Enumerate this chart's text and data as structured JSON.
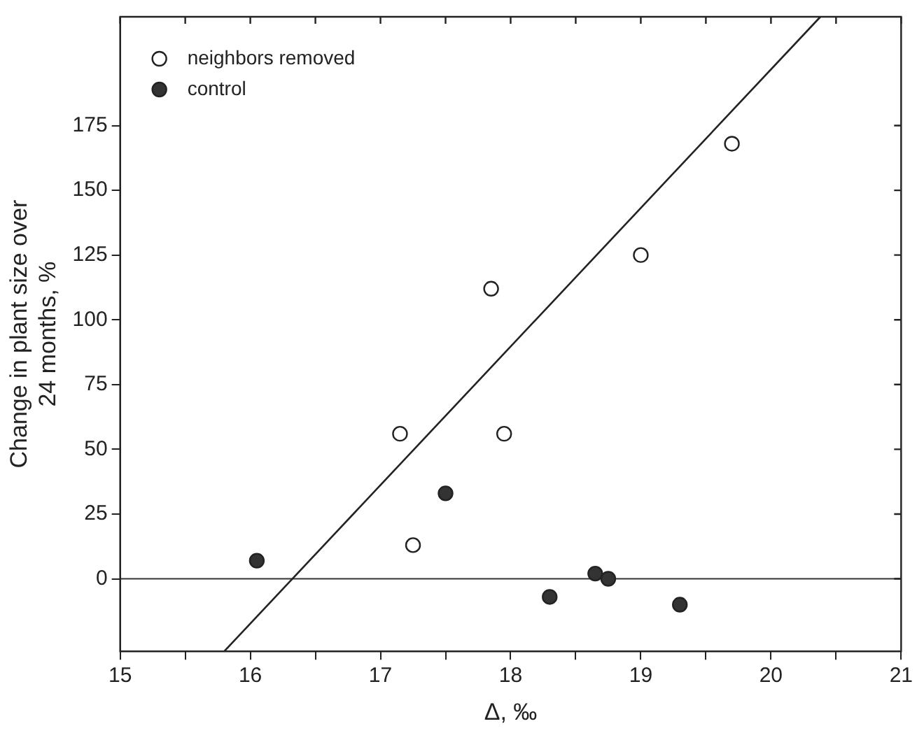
{
  "chart_data": {
    "type": "scatter",
    "xlabel": "Δ, ‰",
    "ylabel": "Change in plant size over 24 months, %",
    "xlim": [
      15,
      21
    ],
    "ylim": [
      -28,
      217
    ],
    "xticks": [
      15,
      {
        "value": 15.5,
        "label": null
      },
      16,
      {
        "value": 16.5,
        "label": null
      },
      17,
      {
        "value": 17.5,
        "label": null
      },
      18,
      {
        "value": 18.5,
        "label": null
      },
      19,
      {
        "value": 19.5,
        "label": null
      },
      20,
      {
        "value": 20.5,
        "label": null
      },
      21
    ],
    "yticks": [
      0,
      25,
      50,
      75,
      100,
      125,
      150,
      175
    ],
    "marker": "circle",
    "legend": "top left",
    "grid": false,
    "ref_lines": [
      {
        "axis": "y",
        "value": 0,
        "color": "#333333"
      }
    ],
    "series": [
      {
        "name": "neighbors removed",
        "color": "#ffffff",
        "x": [
          17.15,
          17.25,
          17.85,
          17.95,
          19.0,
          19.7
        ],
        "values": [
          56,
          13,
          112,
          56,
          125,
          168
        ]
      },
      {
        "name": "control",
        "color": "#333333",
        "x": [
          16.05,
          17.5,
          18.3,
          18.65,
          18.75,
          19.3
        ],
        "values": [
          7,
          33,
          -7,
          2,
          0,
          -10
        ]
      },
      {
        "type": "line",
        "color": "#222222",
        "marker": "none",
        "x": [
          15.8,
          20.38
        ],
        "values": [
          -28,
          217
        ]
      }
    ]
  }
}
